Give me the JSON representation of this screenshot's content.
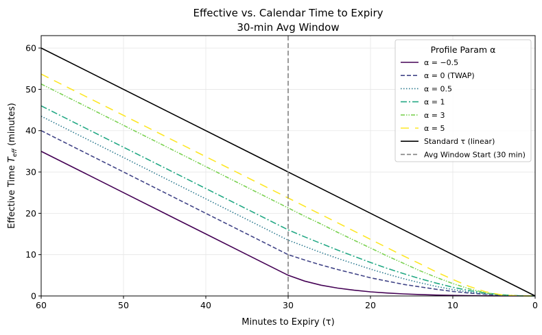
{
  "chart_data": {
    "type": "line",
    "title": "Effective vs. Calendar Time to Expiry",
    "subtitle": "30-min Avg Window",
    "xlabel": "Minutes to Expiry (τ)",
    "ylabel": "Effective Time T_eff (minutes)",
    "xlim": [
      60,
      0
    ],
    "ylim": [
      0,
      63
    ],
    "x_ticks": [
      60,
      50,
      40,
      30,
      20,
      10,
      0
    ],
    "y_ticks": [
      0,
      10,
      20,
      30,
      40,
      50,
      60
    ],
    "x_tick_labels": [
      "60",
      "50",
      "40",
      "30",
      "20",
      "10",
      "0"
    ],
    "y_tick_labels": [
      "0",
      "10",
      "20",
      "30",
      "40",
      "50",
      "60"
    ],
    "grid": true,
    "legend": {
      "title": "Profile Param α",
      "placement": "top-right"
    },
    "series": [
      {
        "name": "α = −0.5",
        "color": "#440154",
        "style": "solid",
        "x": [
          60,
          55,
          50,
          45,
          40,
          35,
          30,
          28,
          26,
          24,
          22,
          20,
          18,
          16,
          14,
          12,
          10,
          8,
          6,
          4,
          2,
          0
        ],
        "y": [
          35,
          30,
          25,
          20,
          15,
          10,
          5,
          3.6,
          2.6,
          1.9,
          1.4,
          1.0,
          0.72,
          0.5,
          0.34,
          0.22,
          0.13,
          0.07,
          0.03,
          0.01,
          0.0,
          0
        ]
      },
      {
        "name": "α = 0 (TWAP)",
        "color": "#414487",
        "style": "dashed",
        "x": [
          60,
          55,
          50,
          45,
          40,
          35,
          30,
          28,
          26,
          24,
          22,
          20,
          18,
          16,
          14,
          12,
          10,
          8,
          6,
          4,
          2,
          0
        ],
        "y": [
          40,
          35,
          30,
          25,
          20,
          15,
          10,
          8.7,
          7.5,
          6.4,
          5.4,
          4.4,
          3.6,
          2.8,
          2.2,
          1.6,
          1.1,
          0.7,
          0.4,
          0.18,
          0.04,
          0
        ]
      },
      {
        "name": "α = 0.5",
        "color": "#2a788e",
        "style": "dotted",
        "x": [
          60,
          55,
          50,
          45,
          40,
          35,
          30,
          28,
          26,
          24,
          22,
          20,
          18,
          16,
          14,
          12,
          10,
          8,
          6,
          4,
          2,
          0
        ],
        "y": [
          43.5,
          38.5,
          33.5,
          28.5,
          23.5,
          18.5,
          13.5,
          12.0,
          10.5,
          9.1,
          7.8,
          6.5,
          5.3,
          4.2,
          3.2,
          2.3,
          1.55,
          0.95,
          0.5,
          0.2,
          0.04,
          0
        ]
      },
      {
        "name": "α = 1",
        "color": "#22a884",
        "style": "dashdot",
        "x": [
          60,
          55,
          50,
          45,
          40,
          35,
          30,
          28,
          26,
          24,
          22,
          20,
          18,
          16,
          14,
          12,
          10,
          8,
          6,
          4,
          2,
          0
        ],
        "y": [
          46,
          41,
          36,
          31,
          26,
          21,
          16,
          14.3,
          12.7,
          11.1,
          9.6,
          8.1,
          6.7,
          5.4,
          4.2,
          3.1,
          2.1,
          1.3,
          0.7,
          0.28,
          0.05,
          0
        ]
      },
      {
        "name": "α = 3",
        "color": "#7ad151",
        "style": "dashdotdot",
        "x": [
          60,
          55,
          50,
          45,
          40,
          35,
          30,
          28,
          26,
          24,
          22,
          20,
          18,
          16,
          14,
          12,
          10,
          8,
          6,
          4,
          2,
          0
        ],
        "y": [
          51.3,
          46.3,
          41.3,
          36.3,
          31.3,
          26.3,
          21.3,
          19.3,
          17.4,
          15.4,
          13.5,
          11.6,
          9.7,
          7.9,
          6.1,
          4.5,
          3.0,
          1.7,
          0.75,
          0.22,
          0.02,
          0
        ]
      },
      {
        "name": "α = 5",
        "color": "#fde725",
        "style": "longdash",
        "x": [
          60,
          55,
          50,
          45,
          40,
          35,
          30,
          28,
          26,
          24,
          22,
          20,
          18,
          16,
          14,
          12,
          10,
          8,
          6,
          4,
          2,
          0
        ],
        "y": [
          53.7,
          48.7,
          43.7,
          38.7,
          33.7,
          28.7,
          23.7,
          21.7,
          19.7,
          17.7,
          15.7,
          13.7,
          11.7,
          9.7,
          7.8,
          5.8,
          4.0,
          2.3,
          1.0,
          0.25,
          0.02,
          0
        ]
      },
      {
        "name": "Standard τ (linear)",
        "color": "#000000",
        "style": "solid",
        "x": [
          60,
          0
        ],
        "y": [
          60,
          0
        ]
      }
    ],
    "vline": {
      "name": "Avg Window Start (30 min)",
      "x": 30,
      "color": "#808080",
      "style": "dashed"
    }
  }
}
